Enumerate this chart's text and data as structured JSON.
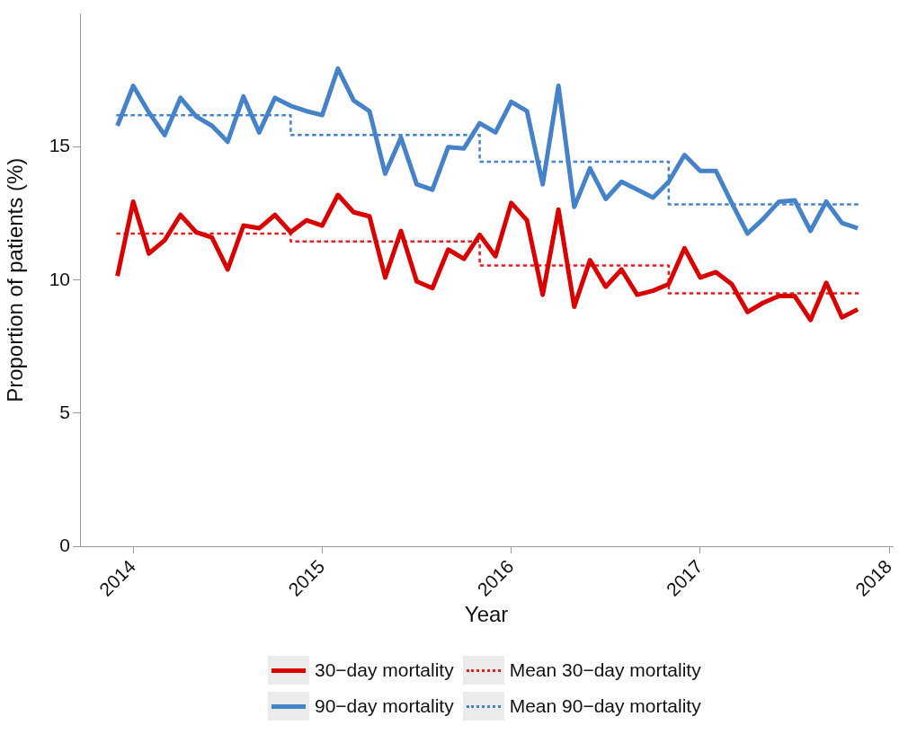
{
  "chart_data": {
    "type": "line",
    "xlabel": "Year",
    "ylabel": "Proportion of patients (%)",
    "x": [
      "2013-12",
      "2014-01",
      "2014-02",
      "2014-03",
      "2014-04",
      "2014-05",
      "2014-06",
      "2014-07",
      "2014-08",
      "2014-09",
      "2014-10",
      "2014-11",
      "2014-12",
      "2015-01",
      "2015-02",
      "2015-03",
      "2015-04",
      "2015-05",
      "2015-06",
      "2015-07",
      "2015-08",
      "2015-09",
      "2015-10",
      "2015-11",
      "2015-12",
      "2016-01",
      "2016-02",
      "2016-03",
      "2016-04",
      "2016-05",
      "2016-06",
      "2016-07",
      "2016-08",
      "2016-09",
      "2016-10",
      "2016-11",
      "2016-12",
      "2017-01",
      "2017-02",
      "2017-03",
      "2017-04",
      "2017-05",
      "2017-06",
      "2017-07",
      "2017-08",
      "2017-09",
      "2017-10",
      "2017-11"
    ],
    "series": [
      {
        "name": "30−day mortality",
        "color": "#d90000",
        "values": [
          10.15,
          12.95,
          11.0,
          11.5,
          12.45,
          11.8,
          11.6,
          10.4,
          12.05,
          11.95,
          12.45,
          11.8,
          12.25,
          12.05,
          13.2,
          12.55,
          12.4,
          10.1,
          11.85,
          9.95,
          9.7,
          11.15,
          10.8,
          11.7,
          10.9,
          12.9,
          12.25,
          9.45,
          12.65,
          9.0,
          10.75,
          9.75,
          10.4,
          9.45,
          9.6,
          9.85,
          11.2,
          10.1,
          10.3,
          9.85,
          8.8,
          9.15,
          9.4,
          9.4,
          8.5,
          9.9,
          8.6,
          8.9
        ]
      },
      {
        "name": "90−day mortality",
        "color": "#4682c8",
        "values": [
          15.8,
          17.3,
          16.3,
          15.45,
          16.85,
          16.15,
          15.8,
          15.2,
          16.9,
          15.55,
          16.85,
          16.55,
          16.35,
          16.2,
          17.95,
          16.75,
          16.35,
          14.0,
          15.35,
          13.6,
          13.4,
          15.0,
          14.95,
          15.9,
          15.55,
          16.7,
          16.35,
          13.6,
          17.3,
          12.75,
          14.2,
          13.05,
          13.7,
          13.4,
          13.1,
          13.7,
          14.7,
          14.1,
          14.1,
          12.9,
          11.75,
          12.3,
          12.95,
          13.0,
          11.85,
          12.95,
          12.15,
          11.95
        ]
      },
      {
        "name": "Mean 30−day mortality",
        "type": "step",
        "line_style": "dotted",
        "color": "#e02020",
        "x": [
          "2013-12",
          "2014-11",
          "2015-11",
          "2016-11",
          "2017-11"
        ],
        "values": [
          11.75,
          11.45,
          10.55,
          9.5,
          9.5
        ]
      },
      {
        "name": "Mean 90−day mortality",
        "type": "step",
        "line_style": "dotted",
        "color": "#4682c8",
        "x": [
          "2013-12",
          "2014-11",
          "2015-11",
          "2016-11",
          "2017-11"
        ],
        "values": [
          16.2,
          15.45,
          14.45,
          12.85,
          12.85
        ]
      }
    ],
    "xlim": [
      "2013-09-20",
      "2018-01-08"
    ],
    "xticks": [
      {
        "value": "2014",
        "label": "2014"
      },
      {
        "value": "2015",
        "label": "2015"
      },
      {
        "value": "2016",
        "label": "2016"
      },
      {
        "value": "2017",
        "label": "2017"
      },
      {
        "value": "2018",
        "label": "2018"
      }
    ],
    "ylim": [
      0,
      20
    ],
    "yticks": [
      0,
      5,
      10,
      15
    ],
    "grid": false,
    "legend": "bottom",
    "marker": "none",
    "line_style": "solid"
  }
}
